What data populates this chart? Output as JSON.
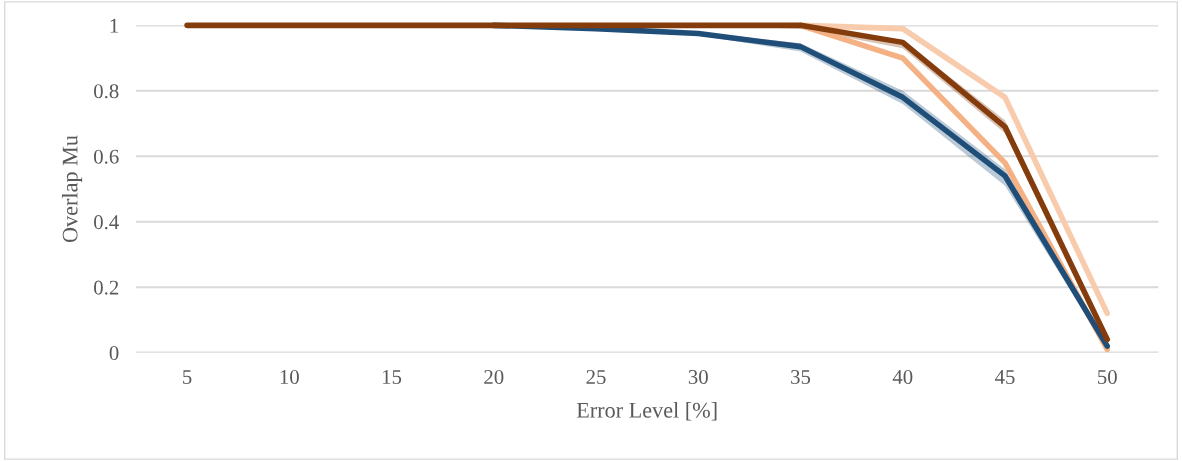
{
  "chart_data": {
    "type": "line",
    "xlabel": "Error Level [%]",
    "ylabel": "Overlap Mu",
    "categories": [
      "5",
      "10",
      "15",
      "20",
      "25",
      "30",
      "35",
      "40",
      "45",
      "50"
    ],
    "series": [
      {
        "color": "#f8cbad",
        "values": [
          null,
          null,
          null,
          null,
          null,
          null,
          1,
          0.99,
          0.78,
          0.12
        ]
      },
      {
        "color": "#f4b183",
        "values": [
          null,
          null,
          null,
          null,
          null,
          null,
          1,
          0.9,
          0.58,
          0.01
        ]
      },
      {
        "color": "#1f4e79",
        "values": [
          null,
          null,
          null,
          1,
          0.99,
          0.975,
          0.935,
          0.78,
          0.54,
          0.02
        ],
        "lower": [
          null,
          null,
          null,
          1,
          0.985,
          0.97,
          0.92,
          0.76,
          0.51,
          0.01
        ],
        "upper": [
          null,
          null,
          null,
          1,
          0.995,
          0.98,
          0.945,
          0.8,
          0.56,
          0.03
        ]
      },
      {
        "color": "#843c0c",
        "values": [
          1,
          1,
          1,
          1,
          1,
          1,
          1,
          0.948,
          0.69,
          0.04
        ],
        "lower": [
          1,
          1,
          1,
          1,
          1,
          1,
          0.99,
          0.93,
          0.67,
          0.03
        ],
        "upper": [
          1,
          1,
          1,
          1,
          1,
          1,
          1,
          0.955,
          0.71,
          0.05
        ]
      }
    ],
    "ylim": [
      0,
      1
    ],
    "yticks": [
      0,
      0.2,
      0.4,
      0.6,
      0.8,
      1
    ],
    "grid": "y",
    "legend": false,
    "marker": "none",
    "line_style": "solid"
  }
}
